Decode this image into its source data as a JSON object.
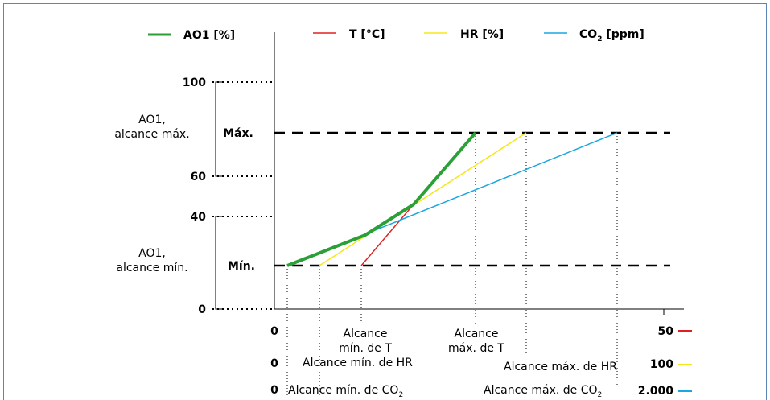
{
  "legend": {
    "ao1": {
      "label": "AO1 [%]",
      "color": "#2aa036"
    },
    "t": {
      "label": "T [°C]",
      "color": "#e02020"
    },
    "hr": {
      "label": "HR [%]",
      "color": "#f5e71a"
    },
    "co2": {
      "label_pre": "CO",
      "label_sub": "2",
      "label_post": " [ppm]",
      "color": "#1aa6e0"
    }
  },
  "y_axis": {
    "tick_100": "100",
    "tick_60": "60",
    "tick_40": "40",
    "tick_0": "0",
    "max_label": "Máx.",
    "min_label": "Mín.",
    "range_max_line1": "AO1,",
    "range_max_line2": "alcance máx.",
    "range_min_line1": "AO1,",
    "range_min_line2": "alcance mín."
  },
  "x_axis": {
    "t_row": {
      "zero": "0",
      "max": "50",
      "min_line1": "Alcance",
      "min_line2": "mín. de T",
      "max_line1": "Alcance",
      "max_line2": "máx. de T"
    },
    "hr_row": {
      "zero": "0",
      "max": "100",
      "min_text": "Alcance mín. de HR",
      "max_text": "Alcance máx. de HR"
    },
    "co2_row": {
      "zero": "0",
      "max": "2.000",
      "min_pre": "Alcance mín. de CO",
      "max_pre": "Alcance máx. de CO",
      "sub": "2"
    }
  }
}
